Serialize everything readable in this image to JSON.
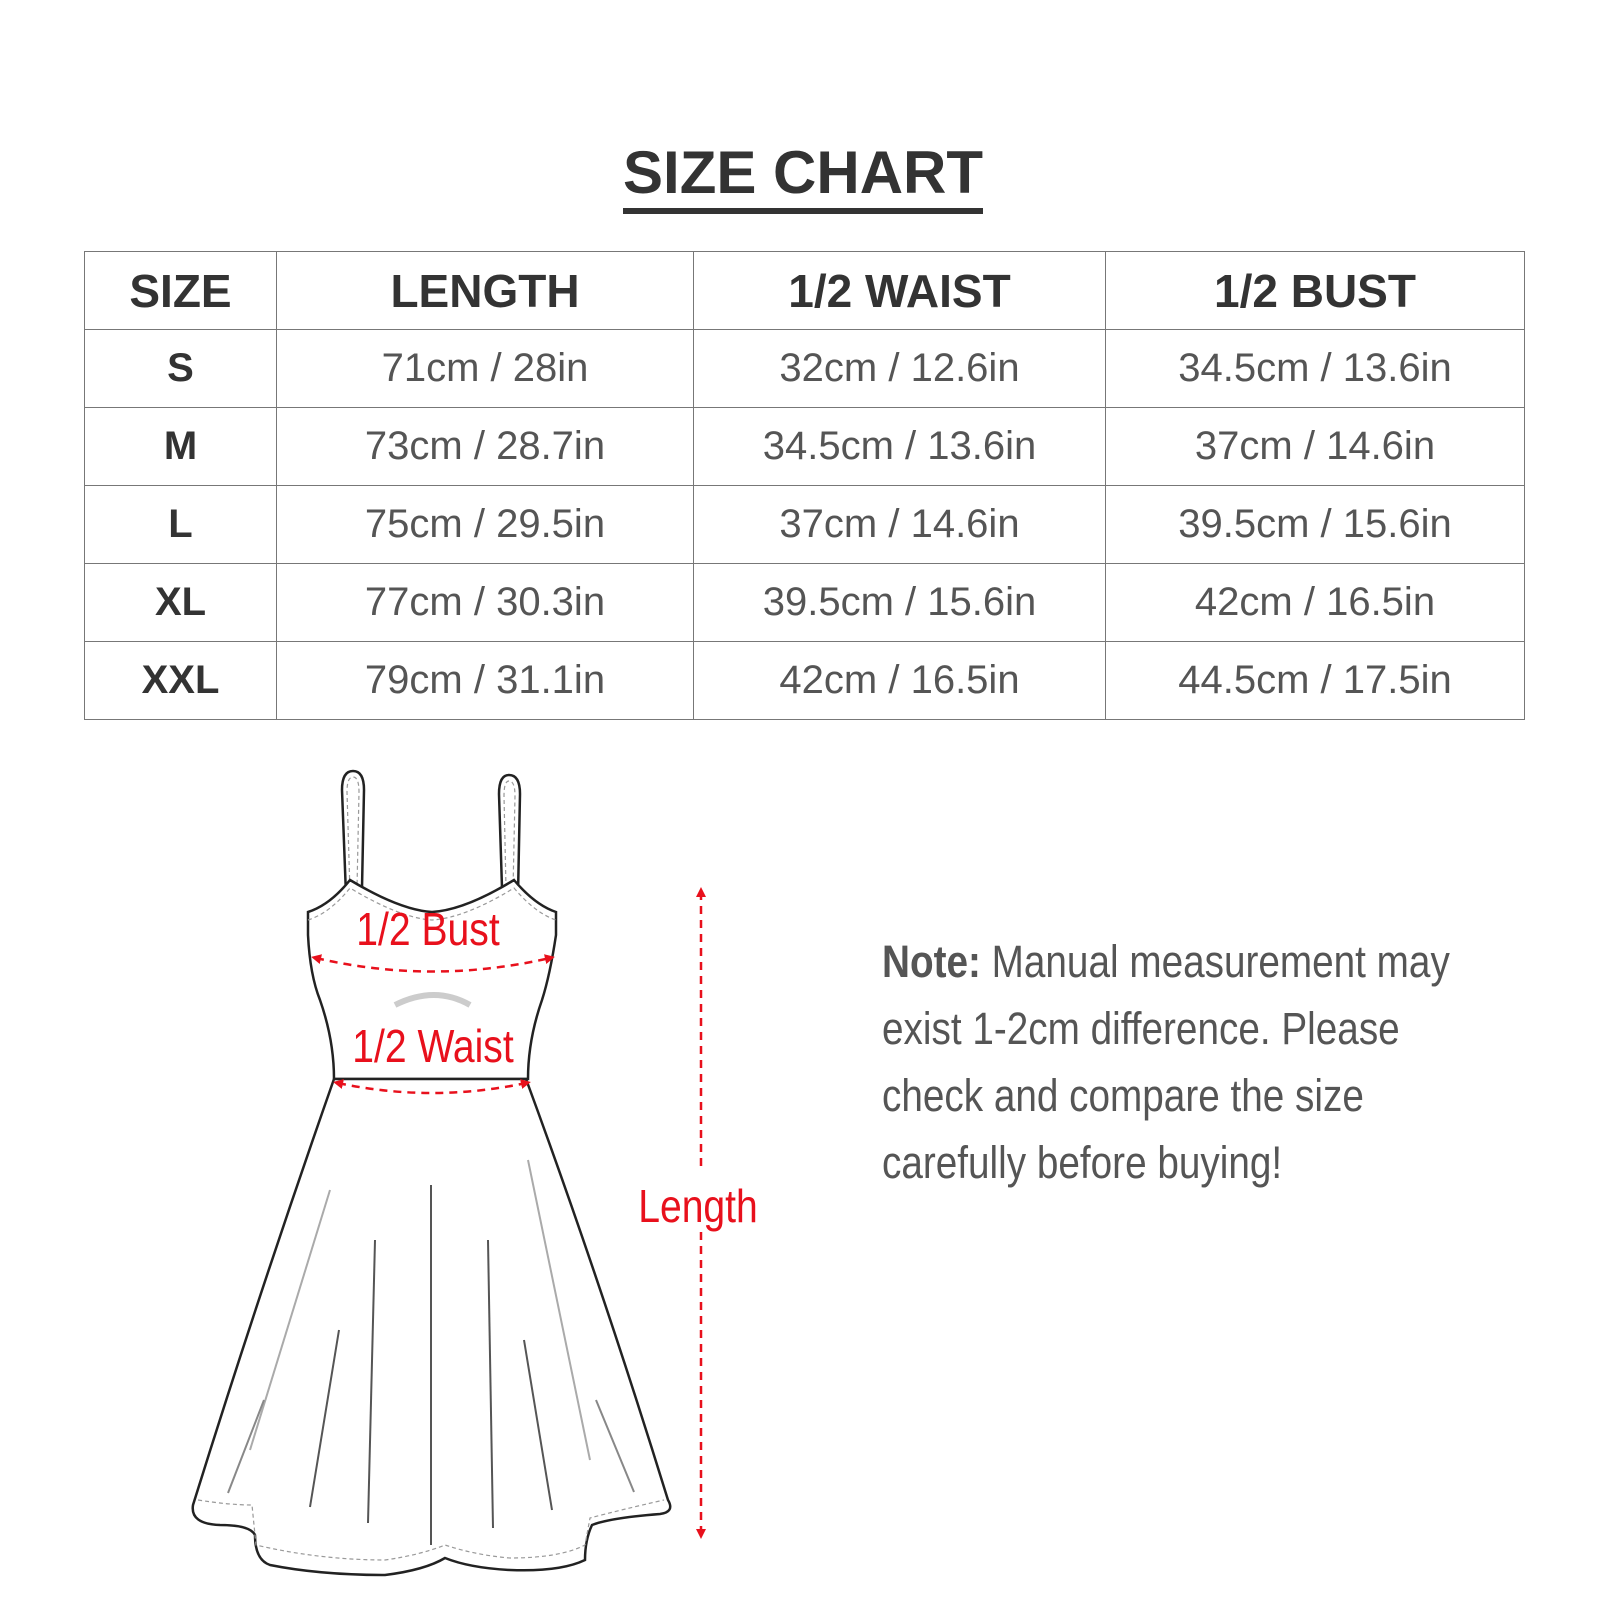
{
  "title": "SIZE CHART",
  "table": {
    "headers": [
      "SIZE",
      "LENGTH",
      "1/2 WAIST",
      "1/2 BUST"
    ],
    "rows": [
      [
        "S",
        "71cm / 28in",
        "32cm / 12.6in",
        "34.5cm / 13.6in"
      ],
      [
        "M",
        "73cm / 28.7in",
        "34.5cm / 13.6in",
        "37cm / 14.6in"
      ],
      [
        "L",
        "75cm / 29.5in",
        "37cm / 14.6in",
        "39.5cm / 15.6in"
      ],
      [
        "XL",
        "77cm / 30.3in",
        "39.5cm / 15.6in",
        "42cm / 16.5in"
      ],
      [
        "XXL",
        "79cm / 31.1in",
        "42cm / 16.5in",
        "44.5cm / 17.5in"
      ]
    ]
  },
  "diagram": {
    "bust_label": "1/2 Bust",
    "waist_label": "1/2 Waist",
    "length_label": "Length",
    "accent_color": "#e8101c"
  },
  "note": {
    "label": "Note:",
    "lines": [
      "Manual measurement may",
      "exist 1-2cm difference. Please",
      "check and compare the size",
      "carefully before buying!"
    ]
  }
}
